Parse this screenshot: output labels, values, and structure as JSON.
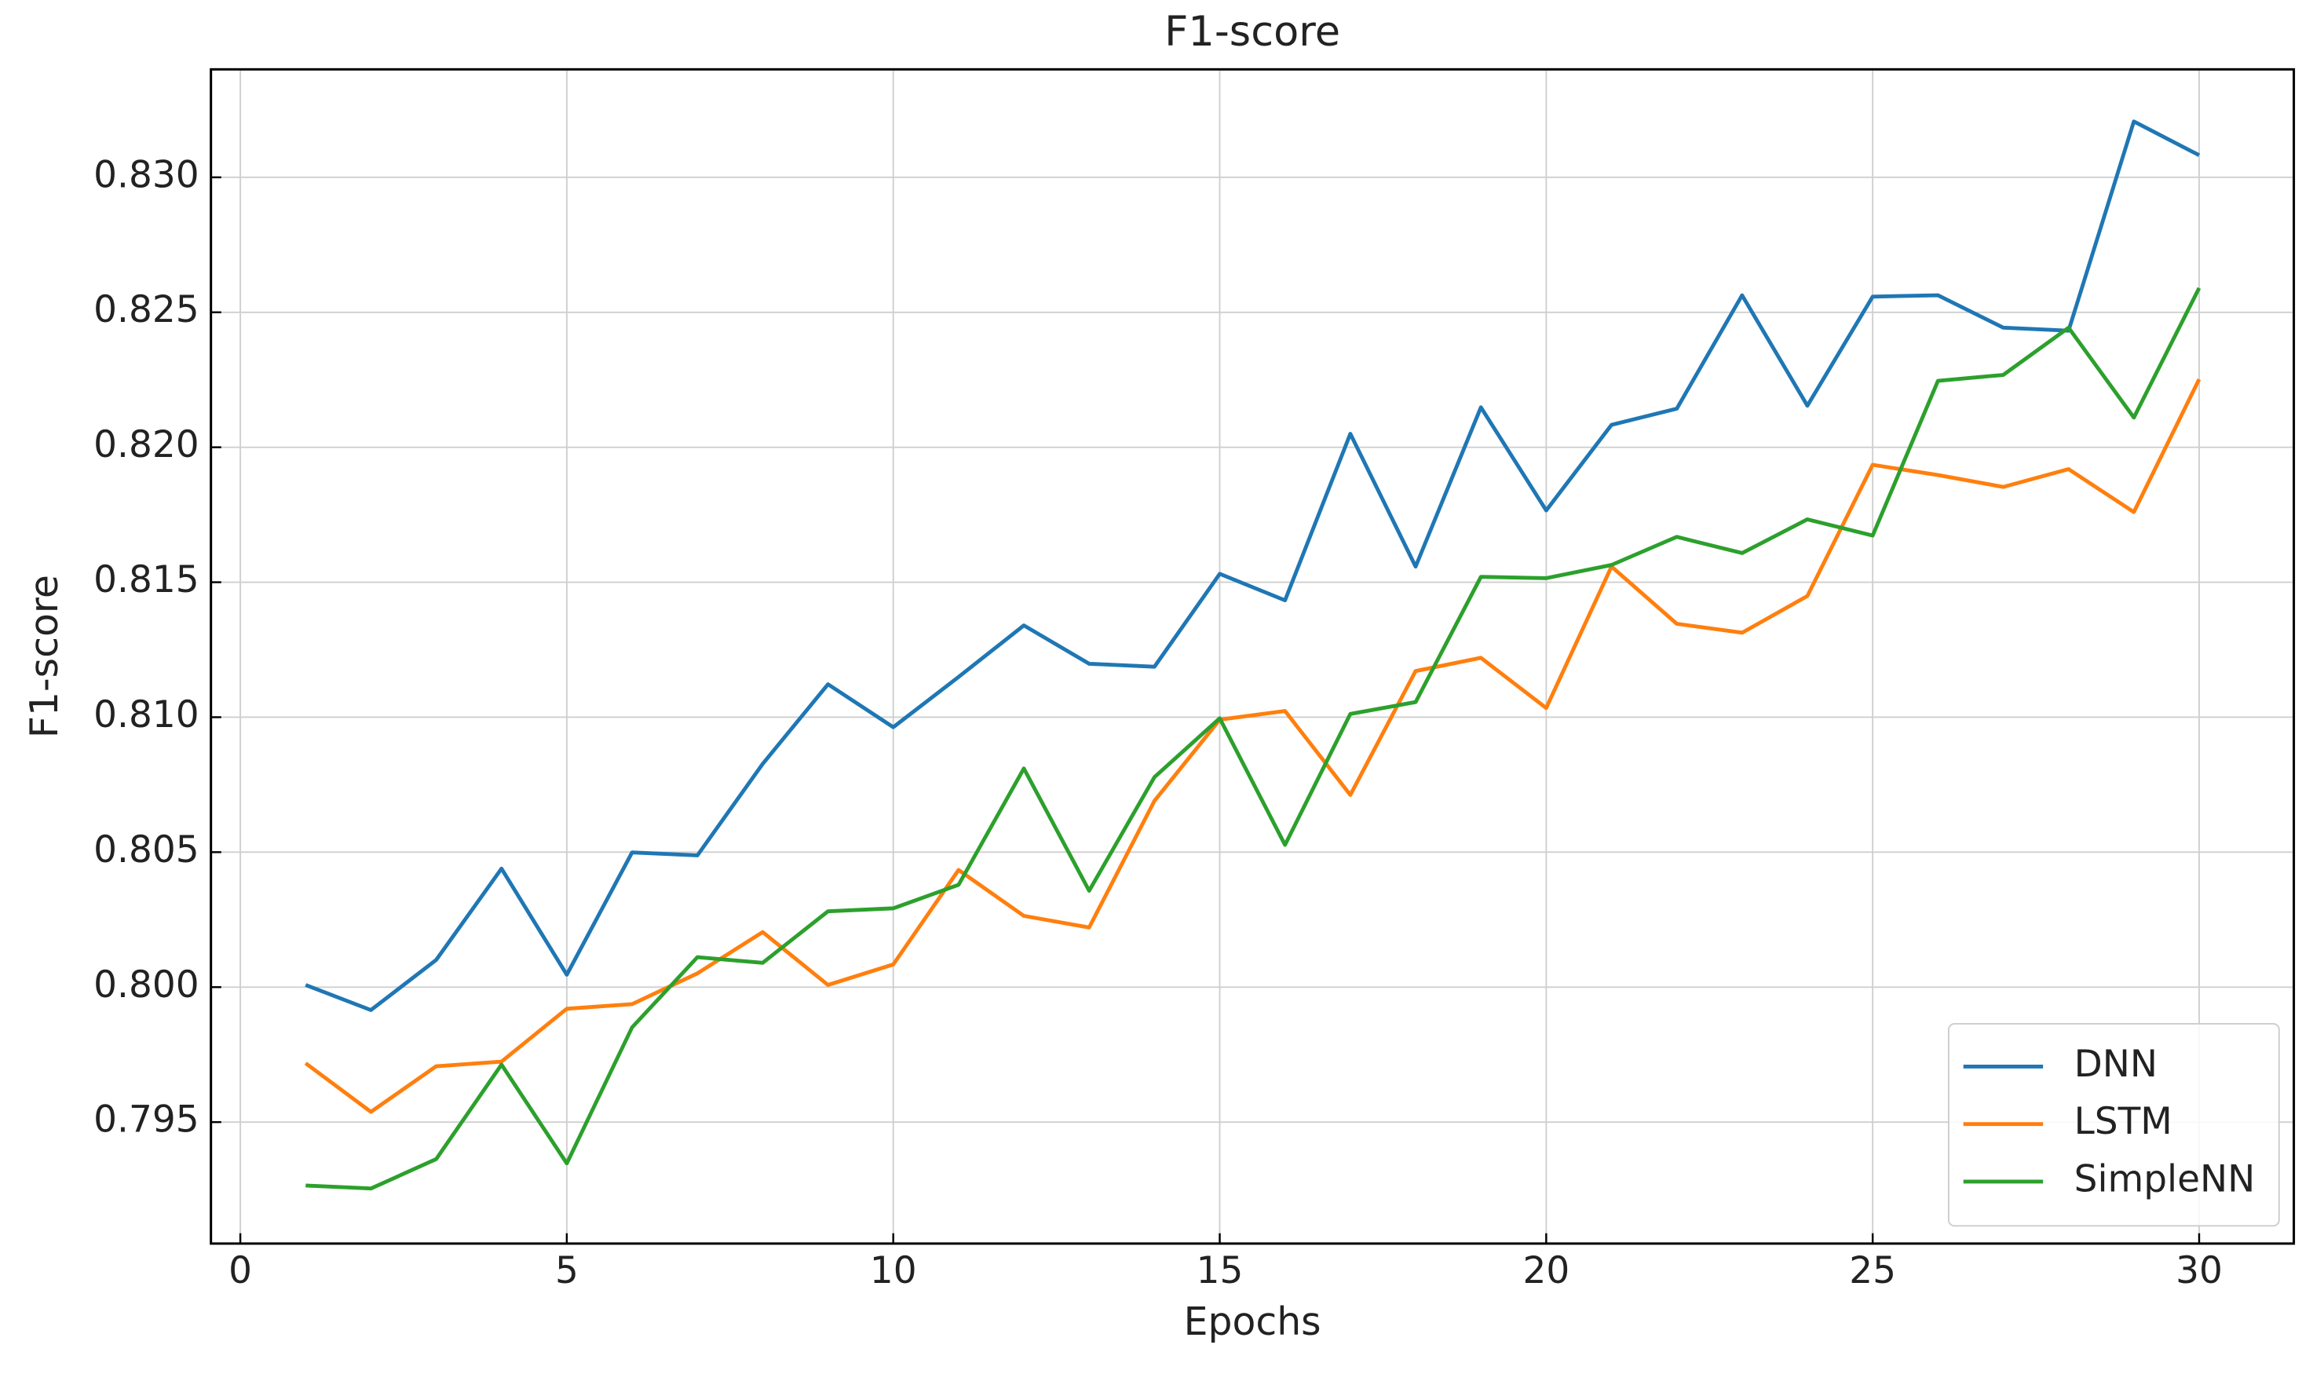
{
  "chart_data": {
    "type": "line",
    "title": "F1-score",
    "x_label": "Epochs",
    "y_label": "F1-score",
    "x": [
      1,
      2,
      3,
      4,
      5,
      6,
      7,
      8,
      9,
      10,
      11,
      12,
      13,
      14,
      15,
      16,
      17,
      18,
      19,
      20,
      21,
      22,
      23,
      24,
      25,
      26,
      27,
      28,
      29,
      30
    ],
    "series": [
      {
        "name": "DNN",
        "color": "#1f77b4",
        "values": [
          0.80008,
          0.79915,
          0.80101,
          0.80439,
          0.80046,
          0.80499,
          0.80488,
          0.80827,
          0.81122,
          0.80963,
          0.81149,
          0.8134,
          0.81198,
          0.81187,
          0.81531,
          0.81433,
          0.8205,
          0.81558,
          0.82148,
          0.81766,
          0.82083,
          0.82143,
          0.82563,
          0.82154,
          0.82558,
          0.82563,
          0.82443,
          0.82432,
          0.83207,
          0.83082
        ]
      },
      {
        "name": "LSTM",
        "color": "#ff7f0e",
        "values": [
          0.79718,
          0.79538,
          0.79707,
          0.79724,
          0.7992,
          0.79937,
          0.80051,
          0.80204,
          0.80008,
          0.80084,
          0.80434,
          0.80264,
          0.80221,
          0.8069,
          0.80991,
          0.81023,
          0.80712,
          0.81171,
          0.8122,
          0.81034,
          0.81558,
          0.81346,
          0.81313,
          0.81449,
          0.81935,
          0.81897,
          0.81853,
          0.81919,
          0.8176,
          0.82252
        ]
      },
      {
        "name": "SimpleNN",
        "color": "#2ca02c",
        "values": [
          0.79265,
          0.79254,
          0.79363,
          0.79713,
          0.79347,
          0.79851,
          0.80111,
          0.8009,
          0.80281,
          0.80292,
          0.80379,
          0.8081,
          0.80357,
          0.80778,
          0.80996,
          0.80527,
          0.81012,
          0.81056,
          0.8152,
          0.81515,
          0.81564,
          0.81668,
          0.81608,
          0.81733,
          0.81673,
          0.82246,
          0.82268,
          0.82443,
          0.8211,
          0.8259
        ]
      }
    ],
    "xlim": [
      -0.45,
      31.45
    ],
    "ylim": [
      0.7905,
      0.834
    ],
    "xticks": [
      0,
      5,
      10,
      15,
      20,
      25,
      30
    ],
    "yticks": [
      0.795,
      {
        "value": 0.8,
        "label": "0.800"
      },
      0.805,
      {
        "value": 0.81,
        "label": "0.810"
      },
      0.815,
      {
        "value": 0.82,
        "label": "0.820"
      },
      0.825,
      {
        "value": 0.83,
        "label": "0.830"
      }
    ],
    "grid": true,
    "legend": "lower right"
  }
}
